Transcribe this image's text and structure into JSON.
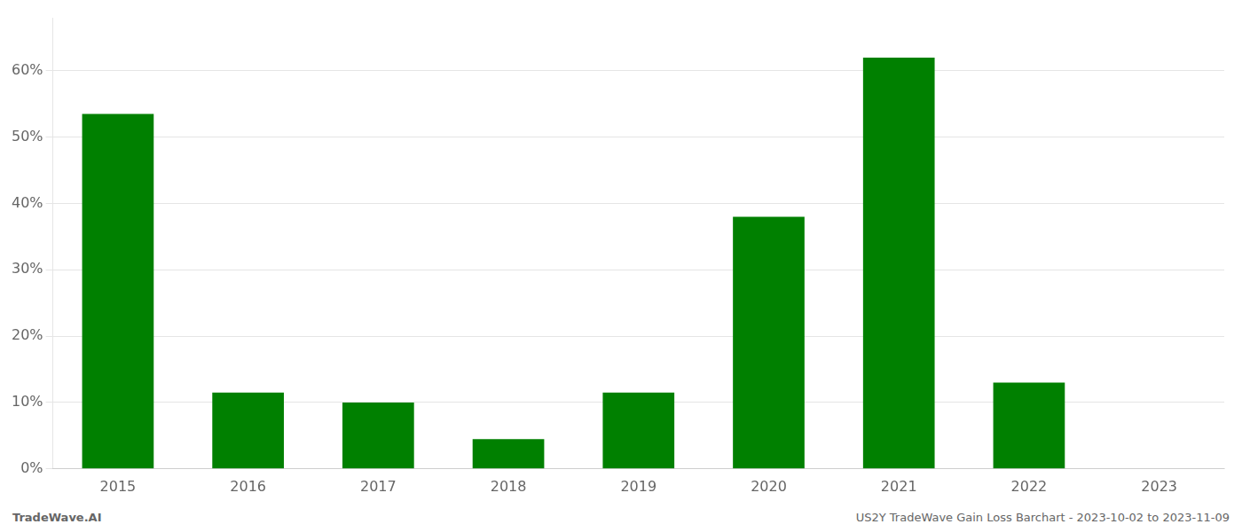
{
  "chart_data": {
    "type": "bar",
    "categories": [
      "2015",
      "2016",
      "2017",
      "2018",
      "2019",
      "2020",
      "2021",
      "2022",
      "2023"
    ],
    "values": [
      53.5,
      11.5,
      10.0,
      4.5,
      11.5,
      38.0,
      62.0,
      13.0,
      0.0
    ],
    "color": "#008000",
    "ylim": [
      0,
      68
    ],
    "yticks": [
      {
        "value": 0,
        "label": "0%"
      },
      {
        "value": 10,
        "label": "10%"
      },
      {
        "value": 20,
        "label": "20%"
      },
      {
        "value": 30,
        "label": "30%"
      },
      {
        "value": 40,
        "label": "40%"
      },
      {
        "value": 50,
        "label": "50%"
      },
      {
        "value": 60,
        "label": "60%"
      }
    ],
    "grid": true,
    "annotations": [
      "TradeWave.AI",
      "US2Y TradeWave Gain Loss Barchart - 2023-10-02 to 2023-11-09"
    ]
  }
}
